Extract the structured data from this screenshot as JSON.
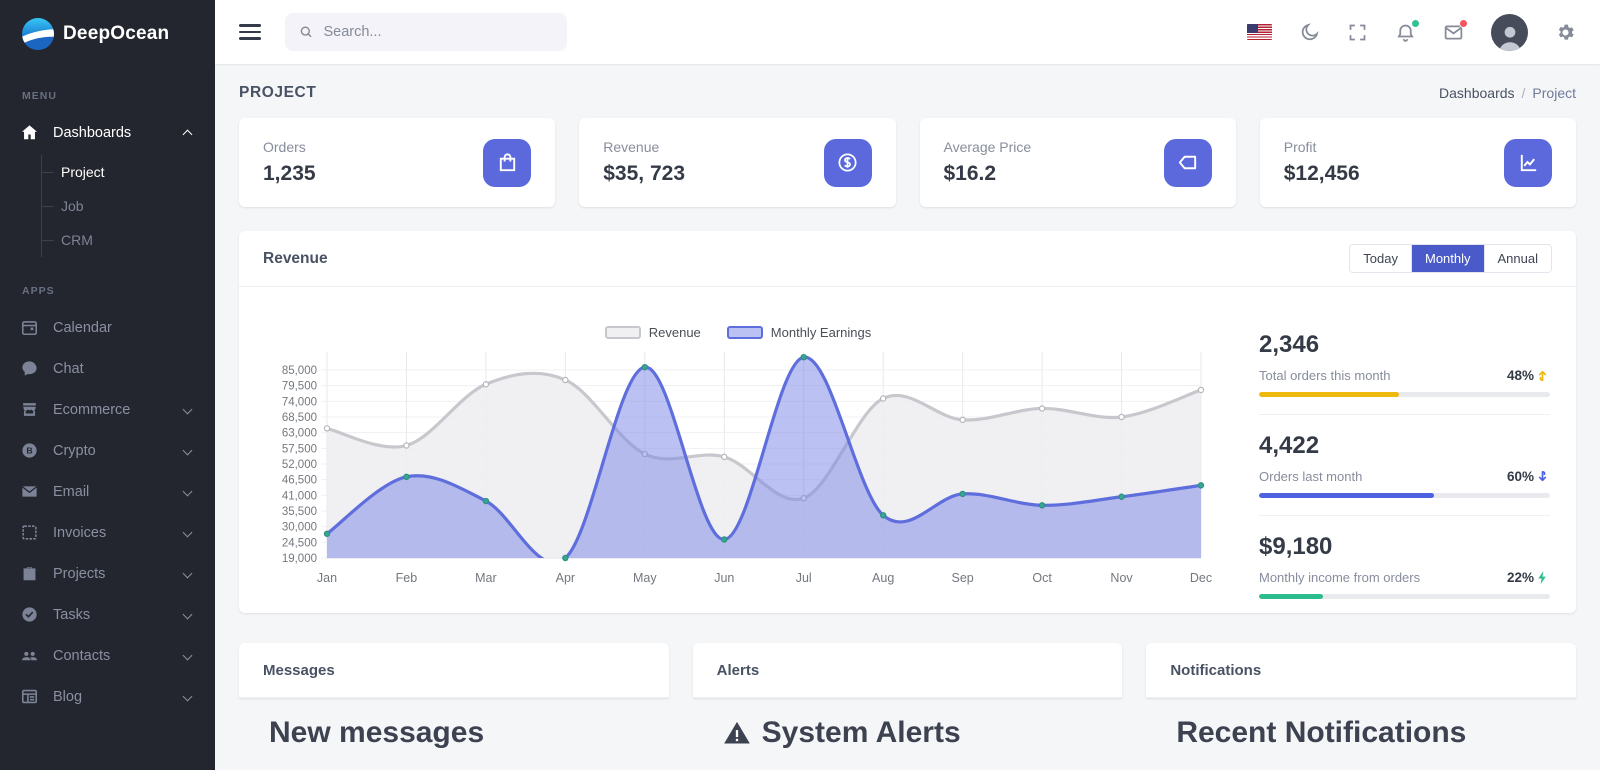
{
  "brand": {
    "name": "DeepOcean"
  },
  "sidebar": {
    "menu_label": "MENU",
    "apps_label": "APPS",
    "dashboards": {
      "label": "Dashboards",
      "children": [
        "Project",
        "Job",
        "CRM"
      ],
      "active_child": "Project"
    },
    "apps": [
      {
        "label": "Calendar",
        "icon": "calendar-icon",
        "has_children": false
      },
      {
        "label": "Chat",
        "icon": "chat-icon",
        "has_children": false
      },
      {
        "label": "Ecommerce",
        "icon": "store-icon",
        "has_children": true
      },
      {
        "label": "Crypto",
        "icon": "bitcoin-icon",
        "has_children": true
      },
      {
        "label": "Email",
        "icon": "envelope-icon",
        "has_children": true
      },
      {
        "label": "Invoices",
        "icon": "invoice-icon",
        "has_children": true
      },
      {
        "label": "Projects",
        "icon": "briefcase-icon",
        "has_children": true
      },
      {
        "label": "Tasks",
        "icon": "check-circle-icon",
        "has_children": true
      },
      {
        "label": "Contacts",
        "icon": "people-icon",
        "has_children": true
      },
      {
        "label": "Blog",
        "icon": "article-icon",
        "has_children": true
      }
    ]
  },
  "topbar": {
    "search_placeholder": "Search..."
  },
  "page": {
    "title": "PROJECT",
    "breadcrumb_parent": "Dashboards",
    "breadcrumb_sep": "/",
    "breadcrumb_current": "Project"
  },
  "stats": [
    {
      "label": "Orders",
      "value": "1,235",
      "icon": "shopping-bag-icon"
    },
    {
      "label": "Revenue",
      "value": "$35, 723",
      "icon": "dollar-circle-icon"
    },
    {
      "label": "Average Price",
      "value": "$16.2",
      "icon": "tag-icon"
    },
    {
      "label": "Profit",
      "value": "$12,456",
      "icon": "chart-line-icon"
    }
  ],
  "revenue_card": {
    "title": "Revenue",
    "range_buttons": [
      "Today",
      "Monthly",
      "Annual"
    ],
    "active_range": "Monthly"
  },
  "chart_data": {
    "type": "area",
    "x": [
      "Jan",
      "Feb",
      "Mar",
      "Apr",
      "May",
      "Jun",
      "Jul",
      "Aug",
      "Sep",
      "Oct",
      "Nov",
      "Dec"
    ],
    "series": [
      {
        "name": "Revenue",
        "line_color": "#c7c8cd",
        "fill_color": "rgba(237,237,240,0.85)",
        "marker_fill": "#ffffff",
        "marker_stroke": "#b5b6bb",
        "values": [
          64500,
          58500,
          80000,
          81500,
          55500,
          54500,
          40000,
          75000,
          67500,
          71500,
          68500,
          78000
        ]
      },
      {
        "name": "Monthly Earnings",
        "line_color": "#5f6edd",
        "fill_color": "rgba(124,136,230,0.52)",
        "marker_fill": "#37a794",
        "marker_stroke": "#2e8f80",
        "values": [
          27500,
          47500,
          39000,
          19000,
          86000,
          25500,
          89500,
          34000,
          41500,
          37500,
          40500,
          44500
        ]
      }
    ],
    "yticks": [
      19000,
      24500,
      30000,
      35500,
      41000,
      46500,
      52000,
      57500,
      63000,
      68500,
      74000,
      79500,
      85000
    ],
    "ylim": [
      19000,
      91000
    ],
    "grid": true,
    "legend_position": "top"
  },
  "summary": [
    {
      "value": "2,346",
      "label": "Total orders this month",
      "percent": "48%",
      "color": "#edb90f",
      "icon": "arrow-up-icon"
    },
    {
      "value": "4,422",
      "label": "Orders last month",
      "percent": "60%",
      "color": "#4d61e1",
      "icon": "arrow-down-icon"
    },
    {
      "value": "$9,180",
      "label": "Monthly income from orders",
      "percent": "22%",
      "color": "#2cbd8e",
      "icon": "bolt-icon"
    }
  ],
  "bottom_cards": [
    {
      "title": "Messages",
      "heading": "New messages",
      "heading_icon": ""
    },
    {
      "title": "Alerts",
      "heading": "System Alerts",
      "heading_icon": "warning-icon"
    },
    {
      "title": "Notifications",
      "heading": "Recent Notifications",
      "heading_icon": ""
    }
  ],
  "colors": {
    "accent": "#5b69dd",
    "active_button": "#4a5ac9",
    "sidebar_bg": "#23262e",
    "page_bg": "#f5f6f8",
    "green_badge": "#34c38f",
    "red_badge": "#f5535f"
  }
}
